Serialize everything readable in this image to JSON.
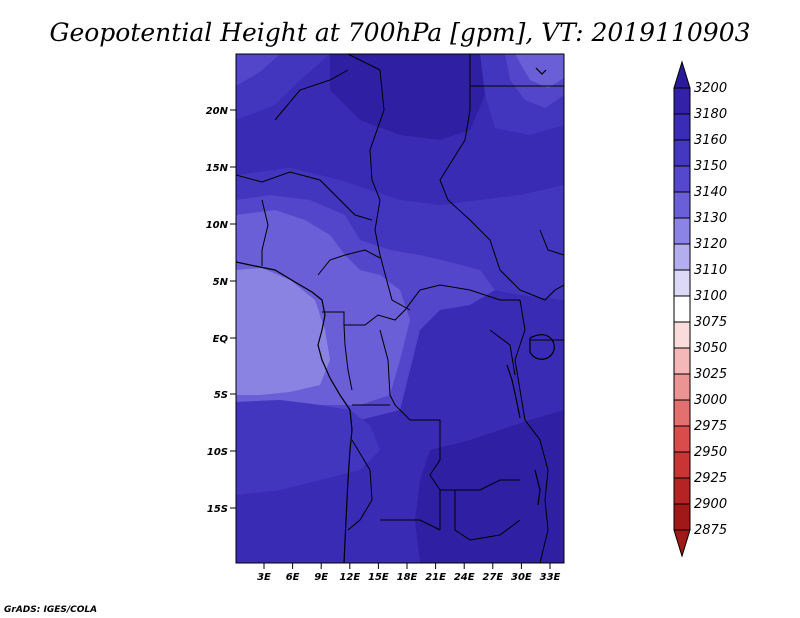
{
  "title": "Geopotential Height at 700hPa [gpm], VT: 2019110903",
  "credit": "GrADS: IGES/COLA",
  "map": {
    "lat_labels": [
      "20N",
      "15N",
      "10N",
      "5N",
      "EQ",
      "5S",
      "10S",
      "15S"
    ],
    "lon_labels": [
      "3E",
      "6E",
      "9E",
      "12E",
      "15E",
      "18E",
      "21E",
      "24E",
      "27E",
      "30E",
      "33E"
    ]
  },
  "colorbar": {
    "levels": [
      "3200",
      "3180",
      "3160",
      "3150",
      "3140",
      "3130",
      "3120",
      "3110",
      "3100",
      "3075",
      "3050",
      "3025",
      "3000",
      "2975",
      "2950",
      "2925",
      "2900",
      "2875"
    ],
    "colors": [
      "#2a1a9a",
      "#3322a8",
      "#3a2cb4",
      "#4437c0",
      "#5548cc",
      "#6b5fd8",
      "#8c84e4",
      "#b4aeee",
      "#dcd9f8",
      "#ffffff",
      "#fadcdc",
      "#f4b8b8",
      "#ec9494",
      "#e27070",
      "#d84c4c",
      "#c93434",
      "#b42424",
      "#a01818"
    ]
  },
  "field_colors": {
    "c3180": "#2f1fa3",
    "c3160": "#3a2bb5",
    "c3150": "#4236bf",
    "c3140": "#5346cb",
    "c3130": "#6a5fd6",
    "c3120": "#8a83e2"
  }
}
